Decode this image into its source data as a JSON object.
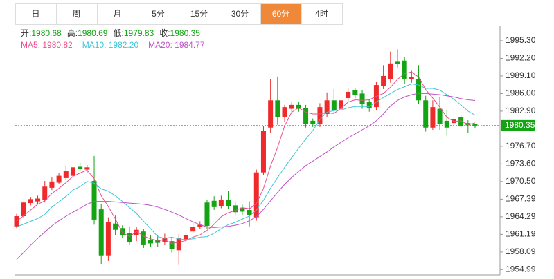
{
  "tabs": {
    "items": [
      "日",
      "周",
      "月",
      "5分",
      "15分",
      "30分",
      "60分",
      "4时"
    ],
    "active": 6
  },
  "chart_data": {
    "type": "candlestick",
    "info": [
      {
        "label": "开:",
        "value": 1980.68
      },
      {
        "label": "高:",
        "value": 1980.69
      },
      {
        "label": "低:",
        "value": 1979.83
      },
      {
        "label": "收:",
        "value": 1980.35
      }
    ],
    "up_color": "#ee2a2a",
    "down_color": "#13a313",
    "open": [
      1962.6,
      1964.4,
      1966.7,
      1967.0,
      1967.2,
      1969.4,
      1970.3,
      1971.1,
      1971.5,
      1973.1,
      1972.6,
      1970.6,
      1965.6,
      1957.5,
      1963.1,
      1962.3,
      1961.4,
      1961.1,
      1961.7,
      1960.2,
      1960.2,
      1959.9,
      1960.0,
      1958.4,
      1960.3,
      1961.7,
      1962.5,
      1966.8,
      1967.1,
      1966.1,
      1967.3,
      1966.3,
      1965.9,
      1965.5,
      1964.2,
      1972.1,
      1980.0,
      1984.8,
      1981.8,
      1983.3,
      1984.0,
      1983.4,
      1981.2,
      1980.6,
      1982.4,
      1984.8,
      1983.3,
      1985.2,
      1986.6,
      1986.0,
      1984.5,
      1983.6,
      1987.3,
      1988.5,
      1991.6,
      1991.8,
      1988.5,
      1988.5,
      1984.8,
      1980.0,
      1983.3,
      1981.2,
      1980.8,
      1981.8,
      1980.8,
      1980.68
    ],
    "high": [
      1964.8,
      1967.0,
      1967.8,
      1968.0,
      1970.6,
      1971.2,
      1972.0,
      1973.3,
      1974.4,
      1973.8,
      1973.4,
      1975.0,
      1966.5,
      1964.2,
      1964.5,
      1962.8,
      1962.5,
      1962.5,
      1962.2,
      1961.0,
      1961.0,
      1961.3,
      1960.5,
      1961.2,
      1961.6,
      1963.4,
      1963.5,
      1967.2,
      1967.9,
      1968.0,
      1968.8,
      1967.0,
      1966.4,
      1967.0,
      1972.6,
      1980.3,
      1988.5,
      1989.0,
      1984.0,
      1984.5,
      1984.6,
      1984.0,
      1981.6,
      1984.3,
      1986.2,
      1986.8,
      1985.5,
      1986.9,
      1987.0,
      1986.6,
      1985.0,
      1988.0,
      1991.0,
      1993.4,
      1993.8,
      1992.5,
      1990.0,
      1991.0,
      1985.6,
      1984.8,
      1985.4,
      1983.0,
      1982.0,
      1982.2,
      1981.3,
      1980.69
    ],
    "low": [
      1962.3,
      1964.0,
      1966.3,
      1966.5,
      1966.8,
      1969.0,
      1970.0,
      1970.8,
      1971.2,
      1972.4,
      1972.0,
      1962.9,
      1956.0,
      1956.5,
      1961.0,
      1960.5,
      1959.3,
      1960.0,
      1958.8,
      1959.0,
      1959.0,
      1959.3,
      1958.0,
      1955.8,
      1959.8,
      1961.3,
      1962.2,
      1962.2,
      1965.5,
      1965.8,
      1965.7,
      1964.5,
      1964.6,
      1962.6,
      1963.6,
      1971.6,
      1979.0,
      1980.5,
      1981.0,
      1982.8,
      1982.8,
      1980.0,
      1980.1,
      1980.1,
      1981.9,
      1982.6,
      1983.0,
      1984.6,
      1985.2,
      1983.3,
      1982.8,
      1983.0,
      1986.8,
      1987.9,
      1990.6,
      1987.7,
      1987.9,
      1984.2,
      1979.3,
      1979.6,
      1979.6,
      1978.6,
      1980.2,
      1979.8,
      1979.0,
      1979.83
    ],
    "close": [
      1964.4,
      1966.8,
      1967.4,
      1967.5,
      1969.6,
      1970.5,
      1971.5,
      1972.3,
      1973.0,
      1972.7,
      1973.0,
      1963.8,
      1957.5,
      1963.3,
      1962.0,
      1961.1,
      1959.9,
      1962.0,
      1959.3,
      1959.6,
      1959.7,
      1960.6,
      1958.6,
      1960.5,
      1961.1,
      1962.5,
      1962.9,
      1962.7,
      1966.0,
      1967.2,
      1966.2,
      1965.1,
      1965.2,
      1964.6,
      1972.1,
      1979.4,
      1984.8,
      1981.8,
      1983.6,
      1984.0,
      1983.3,
      1980.6,
      1980.6,
      1983.6,
      1984.8,
      1983.0,
      1984.8,
      1986.3,
      1985.8,
      1984.2,
      1983.5,
      1987.5,
      1989.1,
      1991.3,
      1991.2,
      1988.5,
      1988.9,
      1984.8,
      1980.0,
      1983.6,
      1980.6,
      1980.0,
      1981.5,
      1980.2,
      1980.4,
      1980.35
    ],
    "ma": [
      {
        "name": "MA5: 1980.82",
        "color": "#e94f8a",
        "values": [
          1963.5,
          1964.5,
          1965.5,
          1966.5,
          1967.1,
          1968.4,
          1969.3,
          1970.3,
          1971.4,
          1972.0,
          1972.5,
          1971.0,
          1968.0,
          1966.1,
          1963.9,
          1961.5,
          1960.8,
          1961.7,
          1960.9,
          1960.4,
          1960.1,
          1960.2,
          1959.6,
          1959.8,
          1960.1,
          1960.7,
          1961.1,
          1961.9,
          1963.0,
          1964.3,
          1965.0,
          1965.4,
          1965.9,
          1965.7,
          1966.6,
          1969.3,
          1973.2,
          1976.5,
          1980.3,
          1982.7,
          1983.5,
          1982.7,
          1982.4,
          1982.4,
          1982.6,
          1982.5,
          1983.4,
          1984.5,
          1984.9,
          1984.8,
          1984.9,
          1985.5,
          1986.0,
          1987.1,
          1988.5,
          1989.5,
          1989.8,
          1988.9,
          1986.7,
          1985.2,
          1983.6,
          1981.8,
          1981.1,
          1981.2,
          1980.5,
          1980.82
        ]
      },
      {
        "name": "MA10: 1982.20",
        "color": "#3cc6d9",
        "values": [
          1962.5,
          1963.0,
          1963.5,
          1964.0,
          1964.7,
          1966.0,
          1966.9,
          1967.9,
          1969.0,
          1969.6,
          1970.5,
          1970.2,
          1969.2,
          1968.8,
          1968.0,
          1967.0,
          1965.9,
          1964.9,
          1963.5,
          1962.2,
          1960.8,
          1960.5,
          1960.7,
          1960.4,
          1960.3,
          1960.4,
          1960.7,
          1960.8,
          1961.4,
          1962.2,
          1962.9,
          1963.3,
          1963.9,
          1964.4,
          1965.5,
          1967.2,
          1969.3,
          1971.2,
          1973.0,
          1974.7,
          1976.4,
          1978.0,
          1979.5,
          1981.4,
          1982.7,
          1983.0,
          1983.1,
          1983.5,
          1983.7,
          1983.7,
          1983.7,
          1984.5,
          1985.3,
          1986.0,
          1986.7,
          1987.2,
          1987.7,
          1987.5,
          1986.9,
          1986.9,
          1986.6,
          1985.8,
          1985.0,
          1984.0,
          1982.9,
          1982.2
        ]
      },
      {
        "name": "MA20: 1984.77",
        "color": "#c050c8",
        "values": [
          1956.8,
          1958.0,
          1959.3,
          1960.5,
          1961.6,
          1962.7,
          1963.6,
          1964.4,
          1965.1,
          1965.8,
          1966.5,
          1967.0,
          1967.0,
          1967.0,
          1966.9,
          1966.8,
          1966.7,
          1966.6,
          1966.5,
          1966.3,
          1966.0,
          1965.6,
          1965.1,
          1964.6,
          1964.0,
          1963.4,
          1962.9,
          1962.5,
          1962.4,
          1962.5,
          1962.6,
          1962.8,
          1963.1,
          1963.6,
          1964.3,
          1965.6,
          1967.1,
          1968.6,
          1970.0,
          1971.2,
          1972.3,
          1973.3,
          1974.1,
          1974.9,
          1975.7,
          1976.6,
          1977.4,
          1978.2,
          1978.9,
          1979.6,
          1980.3,
          1981.2,
          1982.4,
          1983.8,
          1984.8,
          1985.4,
          1985.8,
          1986.0,
          1986.0,
          1985.9,
          1985.8,
          1985.6,
          1985.4,
          1985.1,
          1984.9,
          1984.77
        ]
      }
    ],
    "last_price": 1980.35,
    "last_color": "#13a313",
    "ylim": [
      1954.06,
      1997.85
    ],
    "yticks": [
      {
        "value": 1995.3,
        "label": "1995.30"
      },
      {
        "value": 1992.2,
        "label": "1992.20"
      },
      {
        "value": 1989.1,
        "label": "1989.10"
      },
      {
        "value": 1986,
        "label": "1986.00"
      },
      {
        "value": 1982.9,
        "label": "1982.90"
      },
      {
        "value": 1976.7,
        "label": "1976.70"
      },
      {
        "value": 1973.6,
        "label": "1973.60"
      },
      {
        "value": 1970.5,
        "label": "1970.50"
      },
      1967.39,
      1964.29,
      1961.19,
      1958.09,
      1954.99
    ]
  }
}
